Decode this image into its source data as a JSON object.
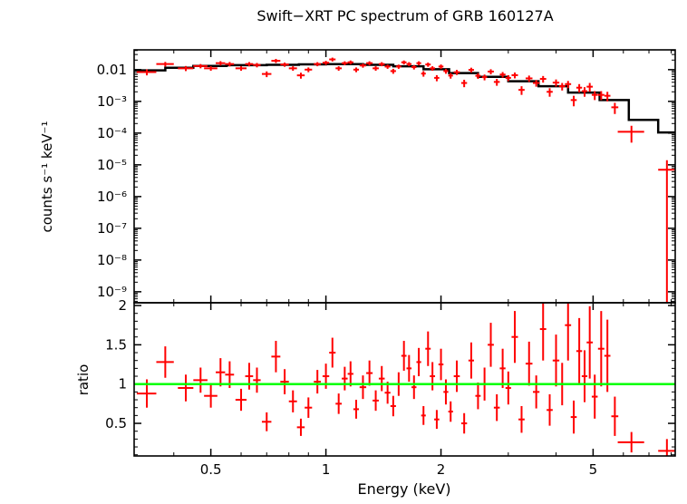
{
  "title": "Swift−XRT PC spectrum of GRB 160127A",
  "xlabel": "Energy (keV)",
  "top_ylabel": "counts s⁻¹ keV⁻¹",
  "bottom_ylabel": "ratio",
  "colors": {
    "background": "#ffffff",
    "data": "#ff0000",
    "model": "#000000",
    "ratio_line": "#00ff00",
    "axis": "#000000"
  },
  "chart_data": [
    {
      "type": "scatter",
      "panel": "spectrum",
      "title": "Swift−XRT PC spectrum of GRB 160127A",
      "ylabel": "counts s⁻¹ keV⁻¹",
      "xscale": "log",
      "yscale": "log",
      "grid": false,
      "legend": "none",
      "xlim": [
        0.315,
        8.2
      ],
      "ylim": [
        4.5e-10,
        0.042
      ],
      "x_ticks": {
        "values": [
          0.5,
          1,
          2,
          5
        ],
        "labels": [
          "0.5",
          "1",
          "2",
          "5"
        ],
        "minor": [
          0.4,
          0.6,
          0.7,
          0.8,
          0.9,
          3,
          4,
          6,
          7,
          8
        ]
      },
      "y_ticks": {
        "values": [
          0.01,
          0.001,
          0.0001,
          1e-05,
          1e-06,
          1e-07,
          1e-08,
          1e-09
        ],
        "labels": [
          "0.01",
          "10⁻³",
          "10⁻⁴",
          "10⁻⁵",
          "10⁻⁶",
          "10⁻⁷",
          "10⁻⁸",
          "10⁻⁹"
        ]
      },
      "points_format": [
        "energy_keV",
        "energy_err",
        "counts",
        "counts_err"
      ],
      "points": [
        [
          0.34,
          0.02,
          0.0084,
          0.0018
        ],
        [
          0.38,
          0.02,
          0.015,
          0.0025
        ],
        [
          0.43,
          0.02,
          0.011,
          0.002
        ],
        [
          0.47,
          0.02,
          0.013,
          0.002
        ],
        [
          0.5,
          0.02,
          0.011,
          0.0018
        ],
        [
          0.53,
          0.015,
          0.016,
          0.0025
        ],
        [
          0.56,
          0.015,
          0.015,
          0.0024
        ],
        [
          0.6,
          0.02,
          0.011,
          0.0018
        ],
        [
          0.63,
          0.015,
          0.015,
          0.0023
        ],
        [
          0.66,
          0.015,
          0.014,
          0.0022
        ],
        [
          0.7,
          0.02,
          0.0073,
          0.0015
        ],
        [
          0.74,
          0.02,
          0.019,
          0.0028
        ],
        [
          0.78,
          0.02,
          0.0145,
          0.0022
        ],
        [
          0.82,
          0.02,
          0.011,
          0.0018
        ],
        [
          0.86,
          0.02,
          0.0066,
          0.0014
        ],
        [
          0.9,
          0.02,
          0.01,
          0.0017
        ],
        [
          0.95,
          0.02,
          0.015,
          0.0022
        ],
        [
          1.0,
          0.02,
          0.0165,
          0.0024
        ],
        [
          1.04,
          0.02,
          0.021,
          0.0029
        ],
        [
          1.08,
          0.02,
          0.011,
          0.0018
        ],
        [
          1.12,
          0.02,
          0.016,
          0.0023
        ],
        [
          1.16,
          0.02,
          0.017,
          0.0024
        ],
        [
          1.2,
          0.02,
          0.01,
          0.0017
        ],
        [
          1.25,
          0.025,
          0.0135,
          0.002
        ],
        [
          1.3,
          0.025,
          0.016,
          0.0023
        ],
        [
          1.35,
          0.025,
          0.011,
          0.0018
        ],
        [
          1.4,
          0.025,
          0.015,
          0.0022
        ],
        [
          1.45,
          0.025,
          0.0125,
          0.0019
        ],
        [
          1.5,
          0.025,
          0.009,
          0.0016
        ],
        [
          1.55,
          0.025,
          0.0125,
          0.0019
        ],
        [
          1.6,
          0.025,
          0.017,
          0.0024
        ],
        [
          1.65,
          0.025,
          0.015,
          0.0022
        ],
        [
          1.7,
          0.025,
          0.012,
          0.0019
        ],
        [
          1.75,
          0.025,
          0.016,
          0.0023
        ],
        [
          1.8,
          0.025,
          0.0075,
          0.0015
        ],
        [
          1.85,
          0.03,
          0.0145,
          0.0022
        ],
        [
          1.9,
          0.03,
          0.011,
          0.0018
        ],
        [
          1.95,
          0.03,
          0.0055,
          0.0012
        ],
        [
          2.0,
          0.03,
          0.0125,
          0.002
        ],
        [
          2.06,
          0.03,
          0.009,
          0.0016
        ],
        [
          2.12,
          0.03,
          0.0065,
          0.0013
        ],
        [
          2.2,
          0.04,
          0.0083,
          0.0015
        ],
        [
          2.3,
          0.04,
          0.0038,
          0.001
        ],
        [
          2.4,
          0.04,
          0.0098,
          0.0017
        ],
        [
          2.5,
          0.04,
          0.0064,
          0.0013
        ],
        [
          2.6,
          0.04,
          0.0058,
          0.0012
        ],
        [
          2.7,
          0.05,
          0.0087,
          0.0016
        ],
        [
          2.8,
          0.05,
          0.0041,
          0.001
        ],
        [
          2.9,
          0.05,
          0.007,
          0.0014
        ],
        [
          3.0,
          0.05,
          0.0055,
          0.0012
        ],
        [
          3.12,
          0.06,
          0.0067,
          0.0014
        ],
        [
          3.25,
          0.06,
          0.0023,
          0.0007
        ],
        [
          3.4,
          0.07,
          0.0053,
          0.0012
        ],
        [
          3.55,
          0.07,
          0.0038,
          0.0009
        ],
        [
          3.7,
          0.07,
          0.0051,
          0.0012
        ],
        [
          3.85,
          0.07,
          0.002,
          0.0006
        ],
        [
          4.0,
          0.08,
          0.0039,
          0.001
        ],
        [
          4.15,
          0.08,
          0.003,
          0.0008
        ],
        [
          4.3,
          0.08,
          0.0035,
          0.0009
        ],
        [
          4.45,
          0.08,
          0.0011,
          0.0004
        ],
        [
          4.6,
          0.08,
          0.0027,
          0.0008
        ],
        [
          4.75,
          0.08,
          0.0021,
          0.0007
        ],
        [
          4.9,
          0.09,
          0.0029,
          0.0009
        ],
        [
          5.05,
          0.09,
          0.0016,
          0.0005
        ],
        [
          5.25,
          0.1,
          0.0016,
          0.0005
        ],
        [
          5.45,
          0.1,
          0.0015,
          0.0005
        ],
        [
          5.7,
          0.12,
          0.00065,
          0.00025
        ],
        [
          6.3,
          0.5,
          0.00011,
          6e-05
        ],
        [
          7.8,
          0.4,
          7e-06,
          7e-06
        ]
      ],
      "model_steps_format": [
        "e_low_keV",
        "e_high_keV",
        "model_counts"
      ],
      "model_steps": [
        [
          0.315,
          0.38,
          0.0095
        ],
        [
          0.38,
          0.45,
          0.0115
        ],
        [
          0.45,
          0.55,
          0.013
        ],
        [
          0.55,
          0.7,
          0.0138
        ],
        [
          0.7,
          0.85,
          0.0142
        ],
        [
          0.85,
          1.0,
          0.0147
        ],
        [
          1.0,
          1.25,
          0.015
        ],
        [
          1.25,
          1.5,
          0.0142
        ],
        [
          1.5,
          1.8,
          0.0128
        ],
        [
          1.8,
          2.1,
          0.0103
        ],
        [
          2.1,
          2.5,
          0.0078
        ],
        [
          2.5,
          3.0,
          0.0059
        ],
        [
          3.0,
          3.6,
          0.0043
        ],
        [
          3.6,
          4.3,
          0.003
        ],
        [
          4.3,
          5.2,
          0.0019
        ],
        [
          5.2,
          6.2,
          0.0011
        ],
        [
          6.2,
          7.4,
          0.00026
        ],
        [
          7.4,
          8.2,
          0.000105
        ]
      ]
    },
    {
      "type": "scatter",
      "panel": "ratio",
      "ylabel": "ratio",
      "xlabel": "Energy (keV)",
      "xscale": "log",
      "yscale": "linear",
      "grid": false,
      "legend": "none",
      "xlim": [
        0.315,
        8.2
      ],
      "ylim": [
        0.085,
        2.035
      ],
      "reference_line": 1,
      "x_ticks": {
        "values": [
          0.5,
          1,
          2,
          5
        ],
        "labels": [
          "0.5",
          "1",
          "2",
          "5"
        ],
        "minor": [
          0.4,
          0.6,
          0.7,
          0.8,
          0.9,
          3,
          4,
          6,
          7,
          8
        ]
      },
      "y_ticks": {
        "values": [
          0.5,
          1,
          1.5,
          2
        ],
        "labels": [
          "0.5",
          "1",
          "1.5",
          "2"
        ],
        "minor": [
          0.1,
          0.2,
          0.3,
          0.4,
          0.6,
          0.7,
          0.8,
          0.9,
          1.1,
          1.2,
          1.3,
          1.4,
          1.6,
          1.7,
          1.8,
          1.9
        ]
      },
      "points_format": [
        "energy_keV",
        "energy_err",
        "ratio",
        "ratio_err"
      ],
      "points": [
        [
          0.34,
          0.02,
          0.88,
          0.18
        ],
        [
          0.38,
          0.02,
          1.28,
          0.2
        ],
        [
          0.43,
          0.02,
          0.95,
          0.17
        ],
        [
          0.47,
          0.02,
          1.05,
          0.16
        ],
        [
          0.5,
          0.02,
          0.85,
          0.15
        ],
        [
          0.53,
          0.015,
          1.15,
          0.18
        ],
        [
          0.56,
          0.015,
          1.12,
          0.17
        ],
        [
          0.6,
          0.02,
          0.8,
          0.14
        ],
        [
          0.63,
          0.015,
          1.1,
          0.17
        ],
        [
          0.66,
          0.015,
          1.05,
          0.16
        ],
        [
          0.7,
          0.02,
          0.52,
          0.12
        ],
        [
          0.74,
          0.02,
          1.35,
          0.2
        ],
        [
          0.78,
          0.02,
          1.03,
          0.16
        ],
        [
          0.82,
          0.02,
          0.78,
          0.14
        ],
        [
          0.86,
          0.02,
          0.45,
          0.11
        ],
        [
          0.9,
          0.02,
          0.7,
          0.13
        ],
        [
          0.95,
          0.02,
          1.03,
          0.15
        ],
        [
          1.0,
          0.02,
          1.1,
          0.16
        ],
        [
          1.04,
          0.02,
          1.4,
          0.19
        ],
        [
          1.08,
          0.02,
          0.75,
          0.13
        ],
        [
          1.12,
          0.02,
          1.07,
          0.15
        ],
        [
          1.16,
          0.02,
          1.13,
          0.16
        ],
        [
          1.2,
          0.02,
          0.68,
          0.12
        ],
        [
          1.25,
          0.025,
          0.96,
          0.15
        ],
        [
          1.3,
          0.025,
          1.14,
          0.16
        ],
        [
          1.35,
          0.025,
          0.79,
          0.13
        ],
        [
          1.4,
          0.025,
          1.07,
          0.16
        ],
        [
          1.45,
          0.025,
          0.89,
          0.14
        ],
        [
          1.5,
          0.025,
          0.72,
          0.13
        ],
        [
          1.55,
          0.025,
          1.0,
          0.15
        ],
        [
          1.6,
          0.025,
          1.36,
          0.19
        ],
        [
          1.65,
          0.025,
          1.2,
          0.17
        ],
        [
          1.7,
          0.025,
          0.96,
          0.15
        ],
        [
          1.75,
          0.025,
          1.28,
          0.18
        ],
        [
          1.8,
          0.025,
          0.6,
          0.12
        ],
        [
          1.85,
          0.03,
          1.45,
          0.22
        ],
        [
          1.9,
          0.03,
          1.1,
          0.18
        ],
        [
          1.95,
          0.03,
          0.55,
          0.12
        ],
        [
          2.0,
          0.03,
          1.25,
          0.2
        ],
        [
          2.06,
          0.03,
          0.9,
          0.16
        ],
        [
          2.12,
          0.03,
          0.65,
          0.13
        ],
        [
          2.2,
          0.04,
          1.1,
          0.2
        ],
        [
          2.3,
          0.04,
          0.5,
          0.13
        ],
        [
          2.4,
          0.04,
          1.3,
          0.23
        ],
        [
          2.5,
          0.04,
          0.85,
          0.17
        ],
        [
          2.6,
          0.04,
          1.0,
          0.21
        ],
        [
          2.7,
          0.05,
          1.5,
          0.28
        ],
        [
          2.8,
          0.05,
          0.7,
          0.17
        ],
        [
          2.9,
          0.05,
          1.2,
          0.25
        ],
        [
          3.0,
          0.05,
          0.95,
          0.21
        ],
        [
          3.12,
          0.06,
          1.6,
          0.33
        ],
        [
          3.25,
          0.06,
          0.55,
          0.17
        ],
        [
          3.4,
          0.07,
          1.26,
          0.28
        ],
        [
          3.55,
          0.07,
          0.9,
          0.21
        ],
        [
          3.7,
          0.07,
          1.7,
          0.4
        ],
        [
          3.85,
          0.07,
          0.67,
          0.2
        ],
        [
          4.0,
          0.08,
          1.3,
          0.33
        ],
        [
          4.15,
          0.08,
          1.0,
          0.27
        ],
        [
          4.3,
          0.08,
          1.75,
          0.45
        ],
        [
          4.45,
          0.08,
          0.58,
          0.21
        ],
        [
          4.6,
          0.08,
          1.42,
          0.42
        ],
        [
          4.75,
          0.08,
          1.1,
          0.33
        ],
        [
          4.9,
          0.09,
          1.53,
          0.46
        ],
        [
          5.05,
          0.09,
          0.84,
          0.28
        ],
        [
          5.25,
          0.1,
          1.45,
          0.48
        ],
        [
          5.45,
          0.1,
          1.36,
          0.46
        ],
        [
          5.7,
          0.12,
          0.59,
          0.25
        ],
        [
          6.3,
          0.5,
          0.26,
          0.13
        ],
        [
          7.8,
          0.4,
          0.15,
          0.15
        ]
      ]
    }
  ]
}
